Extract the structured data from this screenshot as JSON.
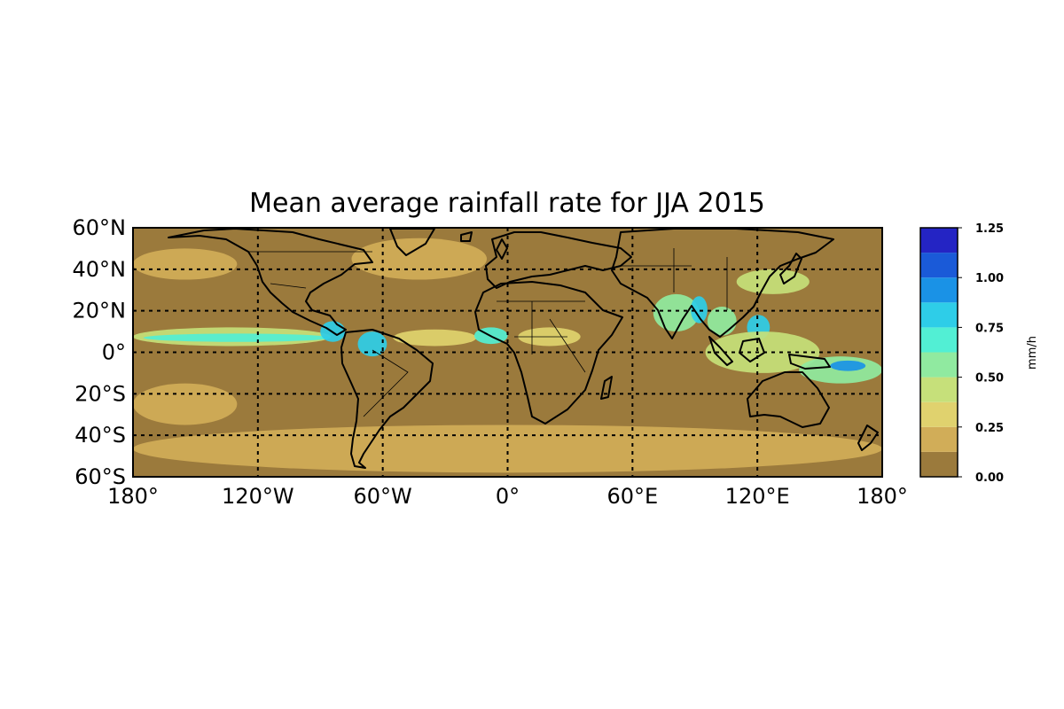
{
  "title": "Mean average rainfall rate for JJA 2015",
  "map": {
    "projection": "equirectangular",
    "lon_range": [
      -180,
      180
    ],
    "lat_range": [
      -60,
      60
    ],
    "gridlines": {
      "lons": [
        -120,
        -60,
        0,
        60,
        120
      ],
      "lats": [
        -40,
        -20,
        0,
        20,
        40
      ],
      "style": "dotted"
    },
    "x_ticks": [
      {
        "value": -180,
        "label": "180°"
      },
      {
        "value": -120,
        "label": "120°W"
      },
      {
        "value": -60,
        "label": "60°W"
      },
      {
        "value": 0,
        "label": "0°"
      },
      {
        "value": 60,
        "label": "60°E"
      },
      {
        "value": 120,
        "label": "120°E"
      },
      {
        "value": 180,
        "label": "180°"
      }
    ],
    "y_ticks": [
      {
        "value": 60,
        "label": "60°N"
      },
      {
        "value": 40,
        "label": "40°N"
      },
      {
        "value": 20,
        "label": "20°N"
      },
      {
        "value": 0,
        "label": "0°"
      },
      {
        "value": -20,
        "label": "20°S"
      },
      {
        "value": -40,
        "label": "40°S"
      },
      {
        "value": -60,
        "label": "60°S"
      }
    ]
  },
  "colorbar": {
    "unit_label": "mm/h",
    "levels": [
      0.0,
      0.125,
      0.25,
      0.375,
      0.5,
      0.625,
      0.75,
      0.875,
      1.0,
      1.125,
      1.25
    ],
    "colors": [
      "#9b7a3c",
      "#d1ad58",
      "#e0d26e",
      "#c6e07a",
      "#90eaa0",
      "#52efd4",
      "#2ecde8",
      "#1a92e6",
      "#1a5ad8",
      "#2424c4"
    ],
    "tick_labels": [
      {
        "value": 0.0,
        "label": "0.00"
      },
      {
        "value": 0.25,
        "label": "0.25"
      },
      {
        "value": 0.5,
        "label": "0.50"
      },
      {
        "value": 0.75,
        "label": "0.75"
      },
      {
        "value": 1.0,
        "label": "1.00"
      },
      {
        "value": 1.25,
        "label": "1.25"
      }
    ]
  },
  "rain_features": [
    {
      "name": "itcz-east-pacific",
      "lon": [
        -180,
        -85
      ],
      "lat": [
        3,
        12
      ],
      "level": 3
    },
    {
      "name": "itcz-east-pacific-core",
      "lon": [
        -175,
        -85
      ],
      "lat": [
        5,
        9
      ],
      "level": 5
    },
    {
      "name": "central-america",
      "lon": [
        -90,
        -78
      ],
      "lat": [
        5,
        15
      ],
      "level": 6
    },
    {
      "name": "north-south-america",
      "lon": [
        -72,
        -58
      ],
      "lat": [
        -2,
        10
      ],
      "level": 6
    },
    {
      "name": "itcz-atlantic",
      "lon": [
        -55,
        -15
      ],
      "lat": [
        3,
        11
      ],
      "level": 2
    },
    {
      "name": "west-africa",
      "lon": [
        -16,
        0
      ],
      "lat": [
        4,
        12
      ],
      "level": 5
    },
    {
      "name": "central-africa",
      "lon": [
        5,
        35
      ],
      "lat": [
        3,
        12
      ],
      "level": 2
    },
    {
      "name": "india-monsoon",
      "lon": [
        70,
        92
      ],
      "lat": [
        10,
        28
      ],
      "level": 4
    },
    {
      "name": "bay-of-bengal",
      "lon": [
        88,
        96
      ],
      "lat": [
        14,
        27
      ],
      "level": 6
    },
    {
      "name": "indochina",
      "lon": [
        96,
        110
      ],
      "lat": [
        8,
        22
      ],
      "level": 4
    },
    {
      "name": "philippines",
      "lon": [
        115,
        126
      ],
      "lat": [
        6,
        18
      ],
      "level": 6
    },
    {
      "name": "maritime-continent",
      "lon": [
        95,
        150
      ],
      "lat": [
        -10,
        10
      ],
      "level": 3
    },
    {
      "name": "east-asia-band",
      "lon": [
        110,
        145
      ],
      "lat": [
        28,
        40
      ],
      "level": 3
    },
    {
      "name": "west-pacific",
      "lon": [
        140,
        180
      ],
      "lat": [
        -15,
        -2
      ],
      "level": 4
    },
    {
      "name": "west-pacific-core",
      "lon": [
        155,
        172
      ],
      "lat": [
        -9,
        -4
      ],
      "level": 7
    },
    {
      "name": "north-atlantic-storm",
      "lon": [
        -75,
        -10
      ],
      "lat": [
        35,
        55
      ],
      "level": 1
    },
    {
      "name": "north-pacific-storm",
      "lon": [
        -180,
        -130
      ],
      "lat": [
        35,
        50
      ],
      "level": 1
    },
    {
      "name": "southern-ocean-storm",
      "lon": [
        -180,
        180
      ],
      "lat": [
        -58,
        -35
      ],
      "level": 1
    },
    {
      "name": "south-pacific-cz",
      "lon": [
        -180,
        -130
      ],
      "lat": [
        -35,
        -15
      ],
      "level": 1
    }
  ]
}
